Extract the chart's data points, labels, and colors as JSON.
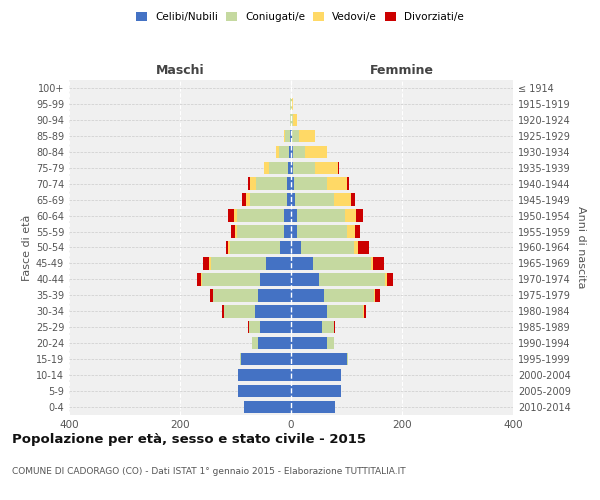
{
  "age_groups": [
    "0-4",
    "5-9",
    "10-14",
    "15-19",
    "20-24",
    "25-29",
    "30-34",
    "35-39",
    "40-44",
    "45-49",
    "50-54",
    "55-59",
    "60-64",
    "65-69",
    "70-74",
    "75-79",
    "80-84",
    "85-89",
    "90-94",
    "95-99",
    "100+"
  ],
  "birth_years": [
    "2010-2014",
    "2005-2009",
    "2000-2004",
    "1995-1999",
    "1990-1994",
    "1985-1989",
    "1980-1984",
    "1975-1979",
    "1970-1974",
    "1965-1969",
    "1960-1964",
    "1955-1959",
    "1950-1954",
    "1945-1949",
    "1940-1944",
    "1935-1939",
    "1930-1934",
    "1925-1929",
    "1920-1924",
    "1915-1919",
    "≤ 1914"
  ],
  "maschi": {
    "celibi": [
      85,
      95,
      95,
      90,
      60,
      55,
      65,
      60,
      55,
      45,
      20,
      12,
      12,
      8,
      8,
      5,
      4,
      2,
      0,
      0,
      0
    ],
    "coniugati": [
      0,
      0,
      0,
      2,
      10,
      20,
      55,
      80,
      105,
      100,
      90,
      85,
      85,
      65,
      55,
      35,
      18,
      8,
      2,
      1,
      0
    ],
    "vedovi": [
      0,
      0,
      0,
      0,
      0,
      0,
      1,
      1,
      2,
      2,
      3,
      4,
      6,
      8,
      10,
      8,
      5,
      3,
      0,
      0,
      0
    ],
    "divorziati": [
      0,
      0,
      0,
      0,
      0,
      2,
      3,
      5,
      8,
      12,
      5,
      8,
      10,
      8,
      5,
      0,
      0,
      0,
      0,
      0,
      0
    ]
  },
  "femmine": {
    "nubili": [
      80,
      90,
      90,
      100,
      65,
      55,
      65,
      60,
      50,
      40,
      18,
      10,
      10,
      8,
      5,
      4,
      3,
      2,
      0,
      0,
      0
    ],
    "coniugate": [
      0,
      0,
      0,
      2,
      12,
      22,
      65,
      90,
      120,
      105,
      95,
      90,
      88,
      70,
      60,
      40,
      22,
      12,
      3,
      1,
      0
    ],
    "vedove": [
      0,
      0,
      0,
      0,
      0,
      1,
      1,
      2,
      3,
      3,
      8,
      15,
      20,
      30,
      35,
      40,
      40,
      30,
      8,
      2,
      0
    ],
    "divorziate": [
      0,
      0,
      0,
      0,
      1,
      2,
      5,
      8,
      10,
      20,
      20,
      10,
      12,
      8,
      5,
      2,
      0,
      0,
      0,
      0,
      0
    ]
  },
  "colors": {
    "celibi_nubili": "#4472c4",
    "coniugati": "#c5d9a0",
    "vedovi": "#ffd966",
    "divorziati": "#cc0000"
  },
  "xlim": 400,
  "title": "Popolazione per età, sesso e stato civile - 2015",
  "subtitle": "COMUNE DI CADORAGO (CO) - Dati ISTAT 1° gennaio 2015 - Elaborazione TUTTITALIA.IT",
  "ylabel_left": "Fasce di età",
  "ylabel_right": "Anni di nascita",
  "xlabel_left": "Maschi",
  "xlabel_right": "Femmine",
  "bg_color": "#f0f0f0",
  "grid_color": "#cccccc"
}
